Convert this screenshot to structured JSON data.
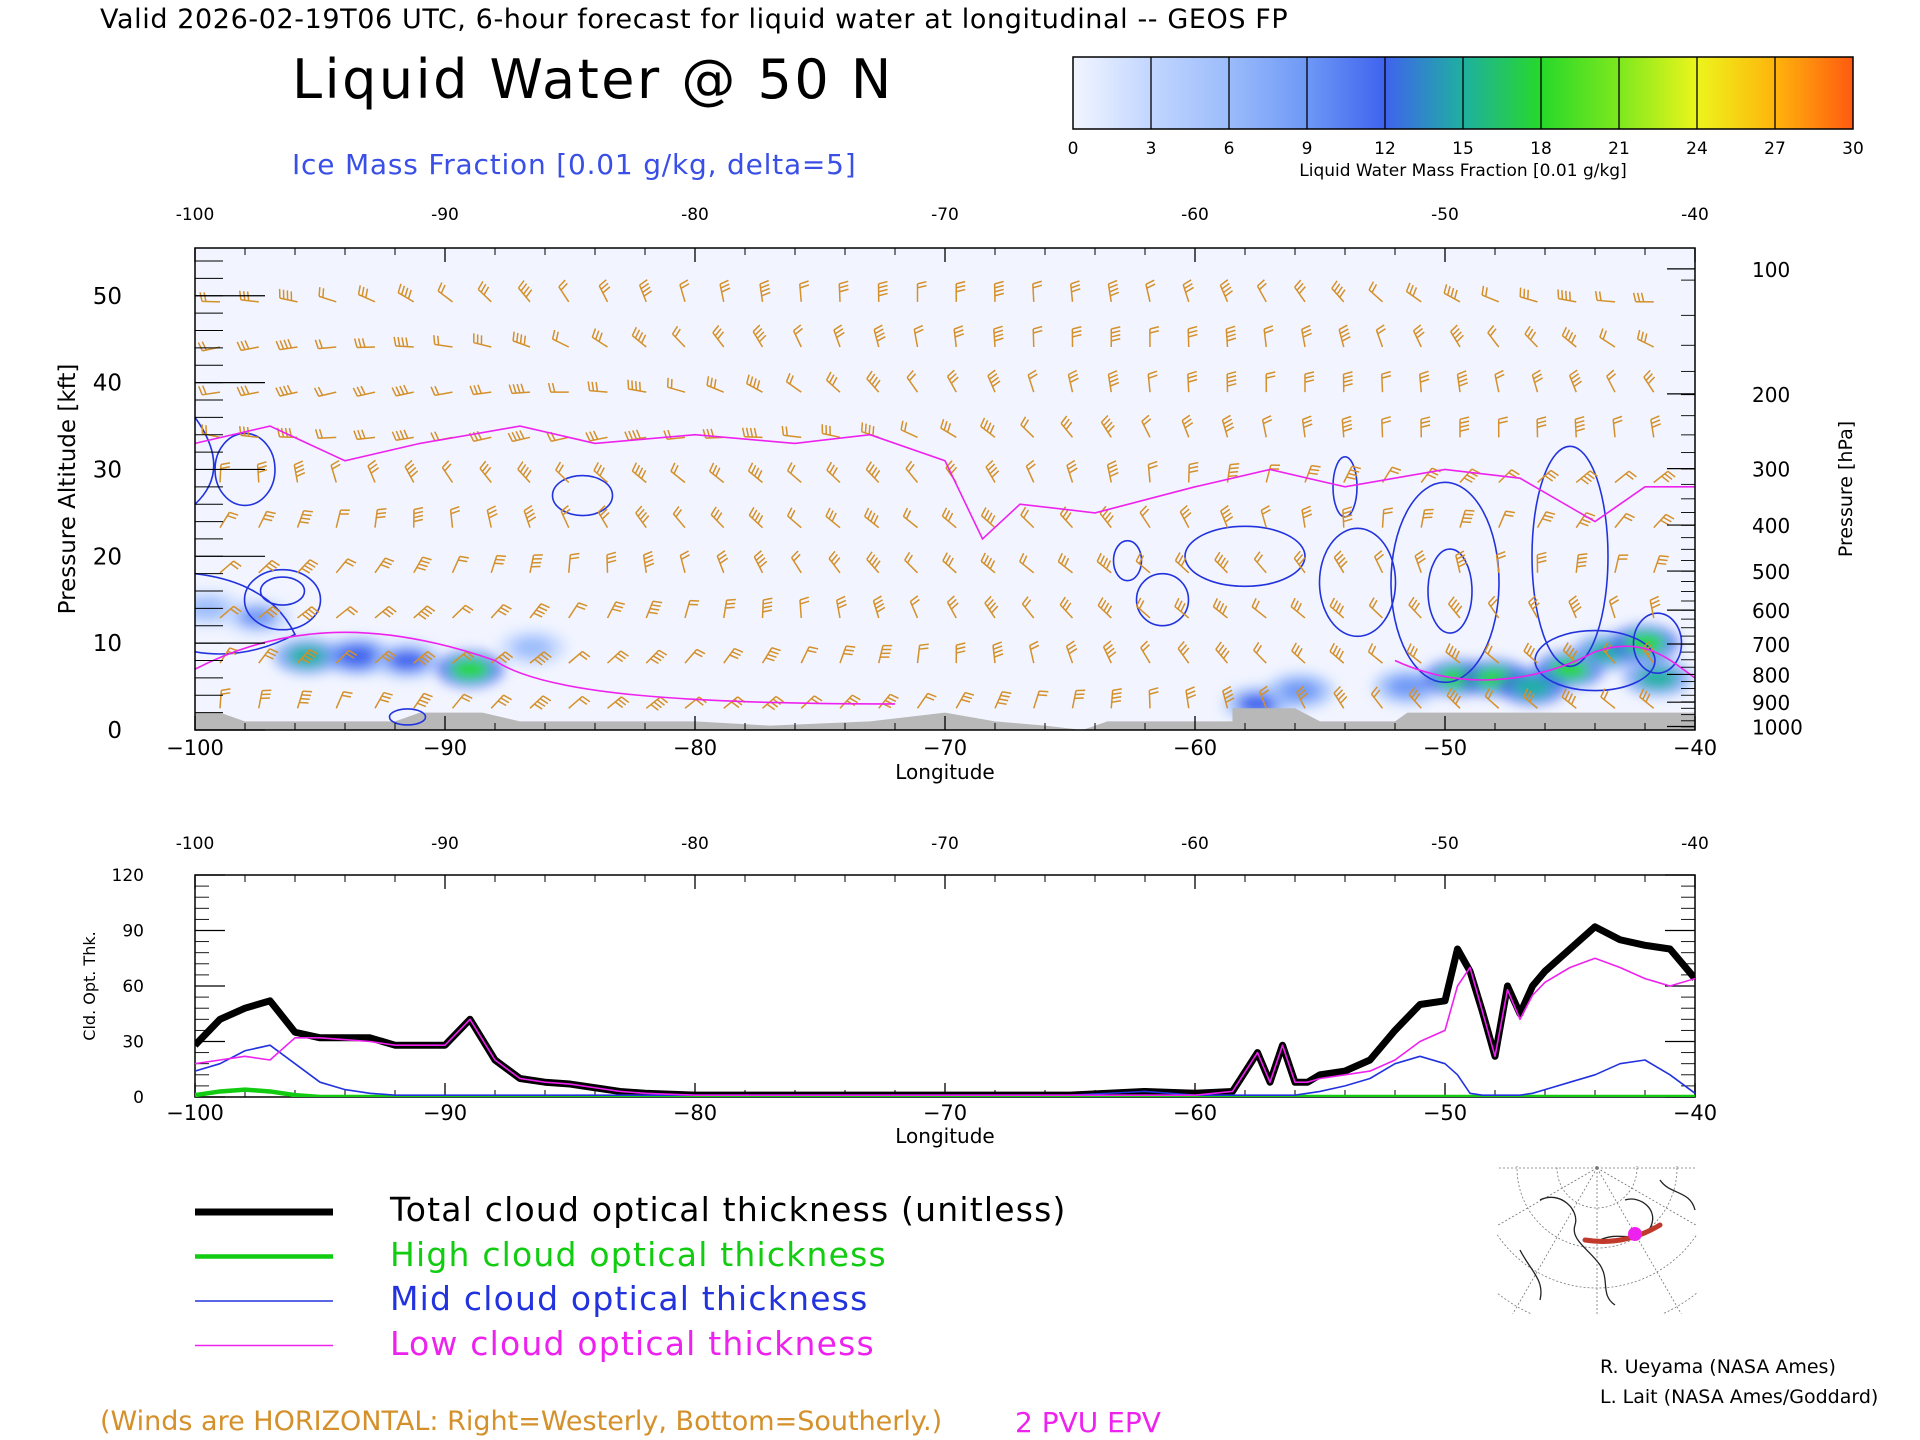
{
  "header": {
    "valid_line": "Valid 2026-02-19T06 UTC, 6-hour forecast for liquid water at longitudinal -- GEOS FP",
    "title": "Liquid Water @ 50 N",
    "subtitle": "Ice Mass Fraction [0.01 g/kg, delta=5]"
  },
  "colorbar": {
    "ticks": [
      "0",
      "3",
      "6",
      "9",
      "12",
      "15",
      "18",
      "21",
      "24",
      "27",
      "30"
    ],
    "label": "Liquid Water Mass Fraction [0.01 g/kg]",
    "colors": [
      "#f2f5ff",
      "#c2d6ff",
      "#9bbcfb",
      "#6e98f6",
      "#3f63ee",
      "#1eb0a0",
      "#27d82a",
      "#7de81e",
      "#ecf51b",
      "#ffb40c",
      "#ff5a10"
    ]
  },
  "colors": {
    "wind_barbs": "#d4902a",
    "epv": "#ee22ee",
    "ice_contour": "#2233dd",
    "terrain": "#b8b8b8",
    "total": "#000000",
    "high": "#11cc11",
    "mid": "#2233dd",
    "low": "#ee22ee"
  },
  "top_panel": {
    "top_axis_ticks": [
      "-100",
      "-90",
      "-80",
      "-70",
      "-60",
      "-50",
      "-40"
    ],
    "bottom_axis_ticks": [
      "−100",
      "−90",
      "−80",
      "−70",
      "−60",
      "−50",
      "−40"
    ],
    "left_ticks": [
      "0",
      "10",
      "20",
      "30",
      "40",
      "50"
    ],
    "right_ticks": [
      "100",
      "200",
      "300",
      "400",
      "500",
      "600",
      "700",
      "800",
      "900",
      "1000"
    ],
    "ylabel_left": "Pressure Altitude [kft]",
    "ylabel_right": "Pressure [hPa]",
    "xlabel": "Longitude"
  },
  "bottom_panel": {
    "top_axis_ticks": [
      "-100",
      "-90",
      "-80",
      "-70",
      "-60",
      "-50",
      "-40"
    ],
    "bottom_axis_ticks": [
      "−100",
      "−90",
      "−80",
      "−70",
      "−60",
      "−50",
      "−40"
    ],
    "left_ticks": [
      "0",
      "30",
      "60",
      "90",
      "120"
    ],
    "ylabel": "Cld. Opt. Thk.",
    "xlabel": "Longitude"
  },
  "legend": [
    {
      "label": "Total cloud optical thickness (unitless)",
      "color": "#000000"
    },
    {
      "label": "High cloud optical thickness",
      "color": "#11cc11"
    },
    {
      "label": "Mid cloud optical thickness",
      "color": "#2233dd"
    },
    {
      "label": "Low cloud optical thickness",
      "color": "#ee22ee"
    }
  ],
  "footer": {
    "winds_note": "(Winds are HORIZONTAL: Right=Westerly, Bottom=Southerly.)",
    "epv_label": "2 PVU EPV",
    "credit_1": "R. Ueyama (NASA Ames)",
    "credit_2": "L. Lait (NASA Ames/Goddard)"
  },
  "chart_data": [
    {
      "type": "heatmap",
      "title": "Liquid Water @ 50 N",
      "xlabel": "Longitude",
      "ylabel": "Pressure Altitude [kft]",
      "xlim": [
        -100,
        -40
      ],
      "ylim": [
        0,
        55
      ],
      "liquid_water_blobs": [
        {
          "lon": -99.5,
          "alt": 14,
          "value": 6
        },
        {
          "lon": -97.5,
          "alt": 13,
          "value": 9
        },
        {
          "lon": -95.5,
          "alt": 8.5,
          "value": 14
        },
        {
          "lon": -93.5,
          "alt": 8.5,
          "value": 13
        },
        {
          "lon": -91.5,
          "alt": 8,
          "value": 12
        },
        {
          "lon": -89.0,
          "alt": 7,
          "value": 17
        },
        {
          "lon": -86.5,
          "alt": 9.5,
          "value": 7
        },
        {
          "lon": -57.5,
          "alt": 3,
          "value": 12
        },
        {
          "lon": -55.8,
          "alt": 4.5,
          "value": 10
        },
        {
          "lon": -51.5,
          "alt": 5,
          "value": 10
        },
        {
          "lon": -49.5,
          "alt": 6,
          "value": 17
        },
        {
          "lon": -48.0,
          "alt": 6,
          "value": 18
        },
        {
          "lon": -46.5,
          "alt": 5,
          "value": 16
        },
        {
          "lon": -45.0,
          "alt": 7,
          "value": 17
        },
        {
          "lon": -43.5,
          "alt": 9,
          "value": 15
        },
        {
          "lon": -42.0,
          "alt": 10,
          "value": 18
        },
        {
          "lon": -41.5,
          "alt": 6,
          "value": 14
        }
      ],
      "epv_2pvu_alt_kft": [
        {
          "lon": -100,
          "alt": 33
        },
        {
          "lon": -97,
          "alt": 35
        },
        {
          "lon": -94,
          "alt": 31
        },
        {
          "lon": -91,
          "alt": 33
        },
        {
          "lon": -87,
          "alt": 35
        },
        {
          "lon": -84,
          "alt": 33
        },
        {
          "lon": -80,
          "alt": 34
        },
        {
          "lon": -76,
          "alt": 33
        },
        {
          "lon": -73,
          "alt": 34
        },
        {
          "lon": -70,
          "alt": 31
        },
        {
          "lon": -68.5,
          "alt": 22
        },
        {
          "lon": -67,
          "alt": 26
        },
        {
          "lon": -64,
          "alt": 25
        },
        {
          "lon": -60,
          "alt": 28
        },
        {
          "lon": -57,
          "alt": 30
        },
        {
          "lon": -54,
          "alt": 28
        },
        {
          "lon": -50,
          "alt": 30
        },
        {
          "lon": -47,
          "alt": 29
        },
        {
          "lon": -44,
          "alt": 24
        },
        {
          "lon": -42,
          "alt": 28
        },
        {
          "lon": -40,
          "alt": 28
        }
      ]
    },
    {
      "type": "line",
      "xlabel": "Longitude",
      "ylabel": "Cld. Opt. Thk.",
      "xlim": [
        -100,
        -40
      ],
      "ylim": [
        0,
        120
      ],
      "x": [
        -100,
        -99,
        -98,
        -97,
        -96,
        -95,
        -94,
        -93,
        -92,
        -91,
        -90,
        -89,
        -88,
        -87,
        -86,
        -85,
        -84,
        -83,
        -82,
        -80,
        -75,
        -70,
        -65,
        -62,
        -60,
        -58.5,
        -57.5,
        -57,
        -56.5,
        -56,
        -55.5,
        -55,
        -54,
        -53,
        -52,
        -51,
        -50,
        -49.5,
        -49,
        -48.5,
        -48,
        -47.5,
        -47,
        -46.5,
        -46,
        -45,
        -44,
        -43,
        -42,
        -41,
        -40
      ],
      "series": [
        {
          "name": "Total cloud optical thickness (unitless)",
          "values": [
            28,
            42,
            48,
            52,
            35,
            32,
            32,
            32,
            28,
            28,
            28,
            42,
            20,
            10,
            8,
            7,
            5,
            3,
            2,
            1,
            1,
            1,
            1,
            3,
            2,
            3,
            24,
            8,
            28,
            8,
            8,
            12,
            14,
            20,
            36,
            50,
            52,
            80,
            68,
            46,
            22,
            60,
            45,
            60,
            68,
            80,
            92,
            85,
            82,
            80,
            64
          ]
        },
        {
          "name": "High cloud optical thickness",
          "values": [
            1,
            3,
            4,
            3,
            1,
            0,
            0,
            0,
            0,
            0,
            0,
            0,
            0,
            0,
            0,
            0,
            0,
            0,
            0,
            0,
            0,
            0,
            0,
            0,
            0,
            0,
            0,
            0,
            0,
            0,
            0,
            0,
            0,
            0,
            0,
            0,
            0,
            0,
            0,
            0,
            0,
            0,
            0,
            0,
            0,
            0,
            0,
            0,
            0,
            0,
            0
          ]
        },
        {
          "name": "Mid cloud optical thickness",
          "values": [
            14,
            18,
            25,
            28,
            18,
            8,
            4,
            2,
            1,
            1,
            1,
            1,
            1,
            1,
            1,
            1,
            1,
            1,
            1,
            1,
            1,
            1,
            1,
            3,
            1,
            1,
            1,
            1,
            1,
            1,
            2,
            3,
            6,
            10,
            18,
            22,
            18,
            12,
            2,
            1,
            1,
            1,
            1,
            2,
            4,
            8,
            12,
            18,
            20,
            12,
            2
          ]
        },
        {
          "name": "Low cloud optical thickness",
          "values": [
            18,
            20,
            22,
            20,
            32,
            32,
            31,
            30,
            28,
            28,
            28,
            42,
            20,
            10,
            8,
            7,
            5,
            3,
            2,
            1,
            1,
            1,
            1,
            1,
            1,
            3,
            24,
            8,
            28,
            8,
            8,
            10,
            12,
            14,
            20,
            30,
            36,
            60,
            70,
            46,
            22,
            58,
            42,
            55,
            62,
            70,
            75,
            70,
            64,
            60,
            64
          ]
        }
      ]
    }
  ]
}
